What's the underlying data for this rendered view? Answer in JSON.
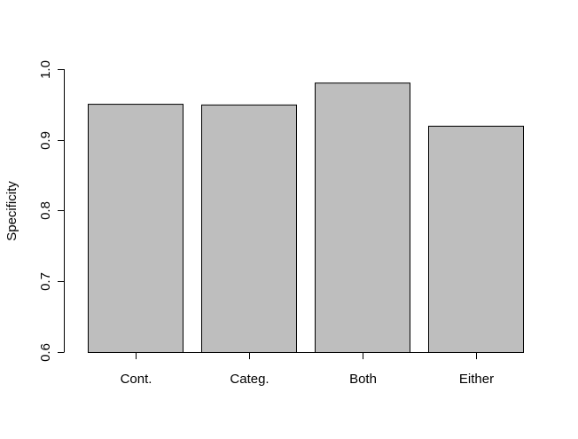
{
  "chart_data": {
    "type": "bar",
    "categories": [
      "Cont.",
      "Categ.",
      "Both",
      "Either"
    ],
    "values": [
      0.951,
      0.95,
      0.981,
      0.92
    ],
    "title": "",
    "xlabel": "",
    "ylabel": "Specificity",
    "ylim": [
      0.6,
      1.0
    ],
    "yticks": [
      "0.6",
      "0.7",
      "0.8",
      "0.9",
      "1.0"
    ],
    "grid": false,
    "legend": "none",
    "colors": {
      "bar_fill": "#bebebe",
      "bar_stroke": "#000000",
      "axis": "#000000"
    }
  }
}
